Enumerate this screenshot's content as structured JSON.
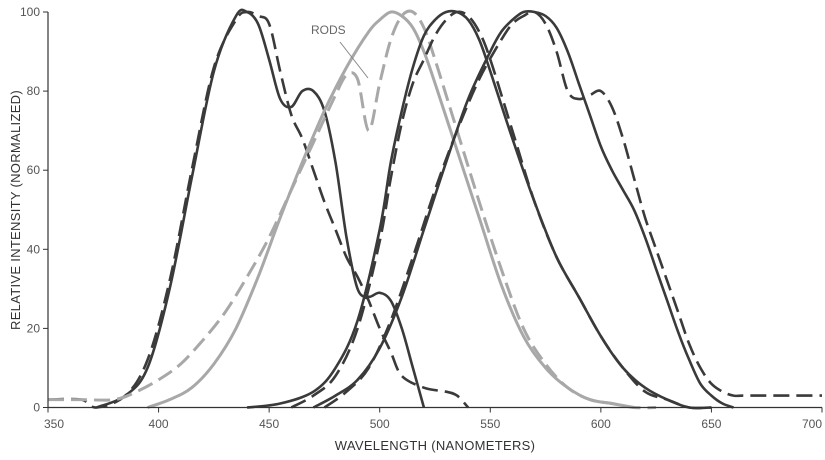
{
  "chart_data": {
    "type": "line",
    "xlabel": "WAVELENGTH (NANOMETERS)",
    "ylabel": "RELATIVE INTENSITY (NORMALIZED)",
    "xlim": [
      350,
      700
    ],
    "ylim": [
      0,
      100
    ],
    "x_ticks": [
      "350",
      "400",
      "450",
      "500",
      "550",
      "600",
      "650",
      "700"
    ],
    "y_ticks": [
      "0",
      "20",
      "40",
      "60",
      "80",
      "100"
    ],
    "grid": false,
    "annotations": [
      {
        "text": "RODS"
      }
    ],
    "colors": {
      "dark": "#3a3a3a",
      "gray": "#a8a8a8"
    },
    "series": [
      {
        "color": "#3a3a3a",
        "dash": "solid",
        "x": [
          372,
          385,
          395,
          405,
          415,
          425,
          435,
          440,
          445,
          450,
          455,
          460,
          465,
          470,
          475,
          480,
          485,
          490,
          495,
          500,
          505,
          510,
          515,
          520
        ],
        "y": [
          0,
          3,
          10,
          30,
          58,
          85,
          99,
          100,
          97,
          88,
          78,
          76,
          80,
          80,
          75,
          62,
          43,
          30,
          28,
          29,
          27,
          20,
          10,
          0
        ]
      },
      {
        "color": "#3a3a3a",
        "dash": "dashed",
        "x": [
          350,
          365,
          372,
          385,
          395,
          405,
          415,
          425,
          435,
          440,
          445,
          450,
          455,
          460,
          465,
          470,
          475,
          480,
          485,
          490,
          495,
          500,
          505,
          510,
          520,
          530,
          535,
          540
        ],
        "y": [
          2,
          2,
          0,
          3,
          12,
          32,
          60,
          86,
          98,
          100,
          99,
          97,
          85,
          74,
          68,
          60,
          52,
          45,
          38,
          33,
          27,
          20,
          14,
          8,
          5,
          4,
          3,
          0
        ]
      },
      {
        "color": "#a8a8a8",
        "dash": "solid",
        "x": [
          395,
          405,
          415,
          425,
          435,
          445,
          455,
          465,
          475,
          485,
          495,
          500,
          505,
          510,
          515,
          520,
          525,
          535,
          545,
          555,
          565,
          575,
          585,
          595,
          605,
          615
        ],
        "y": [
          0,
          2,
          5,
          11,
          20,
          33,
          48,
          62,
          75,
          86,
          95,
          98,
          100,
          99,
          96,
          90,
          82,
          65,
          48,
          31,
          18,
          10,
          5,
          2,
          1,
          0
        ]
      },
      {
        "color": "#a8a8a8",
        "dash": "dashed",
        "x": [
          350,
          365,
          380,
          390,
          400,
          410,
          420,
          430,
          440,
          450,
          460,
          470,
          480,
          485,
          490,
          495,
          500,
          505,
          510,
          515,
          520,
          525,
          535,
          545,
          555,
          565,
          575,
          585,
          595,
          605,
          615,
          625
        ],
        "y": [
          2,
          2,
          2,
          4,
          7,
          11,
          17,
          24,
          33,
          43,
          55,
          67,
          79,
          84,
          83,
          70,
          82,
          93,
          99,
          100,
          96,
          88,
          70,
          52,
          35,
          20,
          11,
          5,
          2,
          1,
          0,
          0
        ]
      },
      {
        "color": "#3a3a3a",
        "dash": "solid",
        "x": [
          440,
          455,
          470,
          480,
          490,
          500,
          505,
          510,
          515,
          520,
          525,
          530,
          535,
          540,
          545,
          550,
          560,
          570,
          580,
          590,
          600,
          610,
          620,
          630,
          640,
          650
        ],
        "y": [
          0,
          1,
          4,
          10,
          22,
          45,
          62,
          75,
          86,
          94,
          98,
          100,
          100,
          98,
          93,
          85,
          68,
          52,
          38,
          28,
          18,
          10,
          5,
          2,
          0,
          0
        ]
      },
      {
        "color": "#3a3a3a",
        "dash": "dashed",
        "x": [
          460,
          470,
          480,
          490,
          500,
          505,
          510,
          515,
          520,
          525,
          530,
          535,
          540,
          545,
          550,
          560,
          570,
          580,
          590,
          600,
          610,
          620,
          630,
          640,
          650
        ],
        "y": [
          0,
          3,
          8,
          20,
          42,
          58,
          72,
          82,
          88,
          94,
          98,
          100,
          99,
          95,
          88,
          70,
          52,
          38,
          28,
          18,
          10,
          4,
          2,
          0,
          0
        ]
      },
      {
        "color": "#3a3a3a",
        "dash": "solid",
        "x": [
          470,
          480,
          490,
          500,
          510,
          520,
          530,
          540,
          550,
          555,
          560,
          565,
          570,
          575,
          580,
          585,
          590,
          595,
          600,
          605,
          610,
          615,
          620,
          625,
          630,
          635,
          640,
          645,
          650,
          655,
          660
        ],
        "y": [
          0,
          3,
          7,
          15,
          28,
          45,
          62,
          78,
          90,
          95,
          98,
          100,
          100,
          99,
          96,
          90,
          82,
          74,
          66,
          60,
          55,
          50,
          43,
          35,
          27,
          19,
          12,
          6,
          3,
          1,
          0
        ]
      },
      {
        "color": "#3a3a3a",
        "dash": "dashed",
        "x": [
          475,
          485,
          495,
          505,
          515,
          525,
          535,
          545,
          555,
          560,
          565,
          570,
          575,
          580,
          585,
          590,
          595,
          600,
          605,
          610,
          615,
          620,
          625,
          630,
          635,
          640,
          645,
          650,
          655,
          660,
          665,
          680,
          700
        ],
        "y": [
          0,
          4,
          10,
          22,
          38,
          55,
          70,
          83,
          93,
          97,
          99,
          100,
          97,
          90,
          80,
          78,
          79,
          80,
          76,
          68,
          58,
          48,
          40,
          32,
          24,
          16,
          10,
          6,
          4,
          3,
          3,
          3,
          3
        ]
      }
    ]
  }
}
